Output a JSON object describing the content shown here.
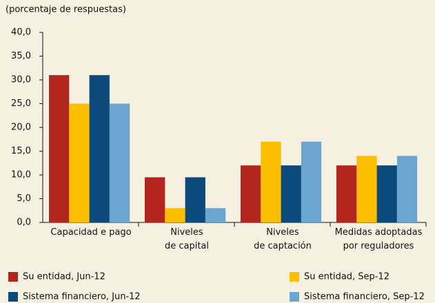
{
  "chart_data": {
    "type": "bar",
    "subtitle": "(porcentaje de respuestas)",
    "categories": [
      "Capacidad e pago",
      "Niveles\nde capital",
      "Niveles\nde captación",
      "Medidas adoptadas\npor reguladores"
    ],
    "series": [
      {
        "name": "Su entidad, Jun-12",
        "color": "#b3261e",
        "values": [
          31,
          9.5,
          12,
          12
        ]
      },
      {
        "name": "Su entidad, Sep-12",
        "color": "#fbbf00",
        "values": [
          25,
          3,
          17,
          14
        ]
      },
      {
        "name": "Sistema financiero, Jun-12",
        "color": "#0d4a7c",
        "values": [
          31,
          9.5,
          12,
          12
        ]
      },
      {
        "name": "Sistema financiero, Sep-12",
        "color": "#6aa6cf",
        "values": [
          25,
          3,
          17,
          14
        ]
      }
    ],
    "ylim": [
      0,
      40
    ],
    "yticks": [
      {
        "value": 0,
        "label": "0,0"
      },
      {
        "value": 5,
        "label": "5,0"
      },
      {
        "value": 10,
        "label": "10,0"
      },
      {
        "value": 15,
        "label": "15,0"
      },
      {
        "value": 20,
        "label": "20,0"
      },
      {
        "value": 25,
        "label": "25,0"
      },
      {
        "value": 30,
        "label": "30,0"
      },
      {
        "value": 35,
        "label": "35,0"
      },
      {
        "value": 40,
        "label": "40,0"
      }
    ],
    "grid": false
  }
}
